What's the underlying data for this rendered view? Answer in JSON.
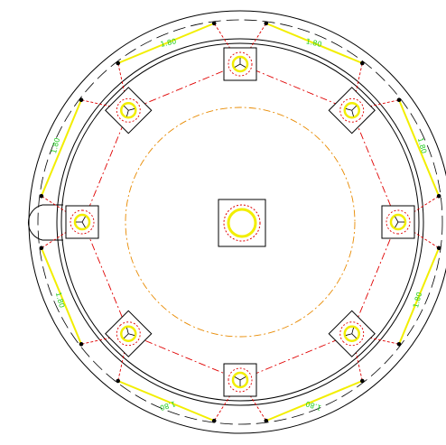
{
  "colors": {
    "background": "#ffffff",
    "outline": "#000000",
    "red_construction": "#e00000",
    "orange_construction": "#e88a00",
    "yellow": "#f2ee00",
    "green_text": "#22cc22"
  },
  "drawing": {
    "node_count": 8,
    "dimension_labels": [
      "1.80",
      "1.80",
      "1.80",
      "1.80",
      "1.80",
      "1.80",
      "1.80",
      "1.80"
    ]
  }
}
